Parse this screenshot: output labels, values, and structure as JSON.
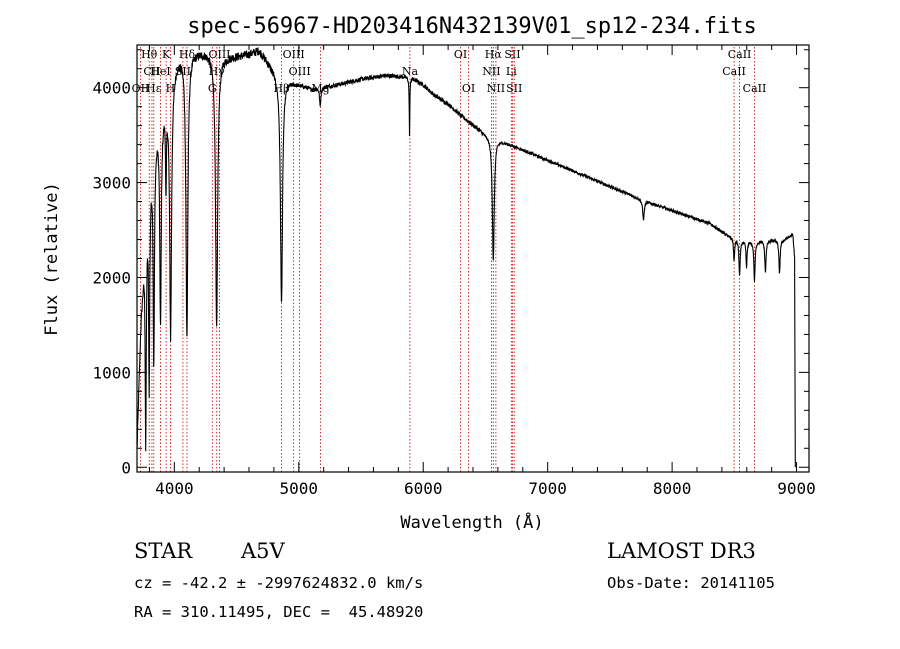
{
  "chart_data": {
    "type": "line",
    "title": "spec-56967-HD203416N432139V01_sp12-234.fits",
    "xlabel": "Wavelength (Å)",
    "ylabel": "Flux (relative)",
    "xlim": [
      3700,
      9100
    ],
    "ylim": [
      -50,
      4450
    ],
    "xticks": [
      4000,
      5000,
      6000,
      7000,
      8000,
      9000
    ],
    "yticks": [
      0,
      1000,
      2000,
      3000,
      4000
    ],
    "grid": false,
    "continuum": [
      [
        3700,
        200
      ],
      [
        3730,
        1500
      ],
      [
        3760,
        2300
      ],
      [
        3790,
        2800
      ],
      [
        3830,
        3400
      ],
      [
        3880,
        3700
      ],
      [
        3930,
        3900
      ],
      [
        3980,
        4150
      ],
      [
        4020,
        4300
      ],
      [
        4080,
        4380
      ],
      [
        4150,
        4380
      ],
      [
        4250,
        4380
      ],
      [
        4400,
        4330
      ],
      [
        4500,
        4340
      ],
      [
        4600,
        4360
      ],
      [
        4680,
        4400
      ],
      [
        4750,
        4280
      ],
      [
        4820,
        4150
      ],
      [
        4950,
        4060
      ],
      [
        5100,
        3990
      ],
      [
        5300,
        4030
      ],
      [
        5500,
        4090
      ],
      [
        5700,
        4130
      ],
      [
        5900,
        4110
      ],
      [
        6000,
        4030
      ],
      [
        6100,
        3910
      ],
      [
        6200,
        3830
      ],
      [
        6300,
        3710
      ],
      [
        6400,
        3610
      ],
      [
        6500,
        3510
      ],
      [
        6700,
        3400
      ],
      [
        6900,
        3290
      ],
      [
        7100,
        3180
      ],
      [
        7300,
        3070
      ],
      [
        7500,
        2960
      ],
      [
        7700,
        2850
      ],
      [
        7900,
        2750
      ],
      [
        8100,
        2660
      ],
      [
        8300,
        2570
      ],
      [
        8450,
        2440
      ],
      [
        8600,
        2380
      ],
      [
        8750,
        2390
      ],
      [
        8900,
        2400
      ],
      [
        8970,
        2450
      ],
      [
        8985,
        2200
      ]
    ],
    "absorption_lines": [
      {
        "wavelength": 3770,
        "depth": 2200,
        "width": 5
      },
      {
        "wavelength": 3798,
        "depth": 2000,
        "width": 5
      },
      {
        "wavelength": 3835,
        "depth": 2300,
        "width": 6
      },
      {
        "wavelength": 3889,
        "depth": 2200,
        "width": 7
      },
      {
        "wavelength": 3933,
        "depth": 900,
        "width": 4
      },
      {
        "wavelength": 3970,
        "depth": 2700,
        "width": 9
      },
      {
        "wavelength": 4101,
        "depth": 3000,
        "width": 9
      },
      {
        "wavelength": 4340,
        "depth": 2900,
        "width": 10
      },
      {
        "wavelength": 4861,
        "depth": 2400,
        "width": 10
      },
      {
        "wavelength": 5172,
        "depth": 200,
        "width": 6
      },
      {
        "wavelength": 5890,
        "depth": 600,
        "width": 3
      },
      {
        "wavelength": 6563,
        "depth": 1300,
        "width": 9
      },
      {
        "wavelength": 7770,
        "depth": 200,
        "width": 8
      },
      {
        "wavelength": 8498,
        "depth": 250,
        "width": 5
      },
      {
        "wavelength": 8542,
        "depth": 380,
        "width": 6
      },
      {
        "wavelength": 8598,
        "depth": 270,
        "width": 5
      },
      {
        "wavelength": 8662,
        "depth": 420,
        "width": 6
      },
      {
        "wavelength": 8750,
        "depth": 330,
        "width": 6
      },
      {
        "wavelength": 8863,
        "depth": 350,
        "width": 6
      }
    ],
    "line_markers": [
      {
        "label": "Hθ",
        "wavelength": 3798,
        "row": 1
      },
      {
        "label": "CII",
        "wavelength": 3820,
        "row": 2
      },
      {
        "label": "OII",
        "wavelength": 3728,
        "row": 3
      },
      {
        "label": "HeI",
        "wavelength": 3889,
        "row": 2
      },
      {
        "label": "Hε",
        "wavelength": 3835,
        "row": 3
      },
      {
        "label": "K",
        "wavelength": 3934,
        "row": 1
      },
      {
        "label": "H",
        "wavelength": 3969,
        "row": 3
      },
      {
        "label": "SII",
        "wavelength": 4069,
        "row": 2
      },
      {
        "label": "Hδ",
        "wavelength": 4102,
        "row": 1
      },
      {
        "label": "OIII",
        "wavelength": 4363,
        "row": 1
      },
      {
        "label": "Hγ",
        "wavelength": 4341,
        "row": 2
      },
      {
        "label": "G",
        "wavelength": 4305,
        "row": 3
      },
      {
        "label": "OIII",
        "wavelength": 4959,
        "row": 1
      },
      {
        "label": "OIII",
        "wavelength": 5007,
        "row": 2
      },
      {
        "label": "Hβ",
        "wavelength": 4861,
        "row": 3
      },
      {
        "label": "Mg",
        "wavelength": 5175,
        "row": 3
      },
      {
        "label": "Na",
        "wavelength": 5893,
        "row": 2
      },
      {
        "label": "OI",
        "wavelength": 6300,
        "row": 1
      },
      {
        "label": "OI",
        "wavelength": 6364,
        "row": 3
      },
      {
        "label": "Hα",
        "wavelength": 6563,
        "row": 1
      },
      {
        "label": "NII",
        "wavelength": 6548,
        "row": 2
      },
      {
        "label": "NII",
        "wavelength": 6584,
        "row": 3
      },
      {
        "label": "SII",
        "wavelength": 6717,
        "row": 1
      },
      {
        "label": "Li",
        "wavelength": 6708,
        "row": 2
      },
      {
        "label": "SII",
        "wavelength": 6731,
        "row": 3
      },
      {
        "label": "CaII",
        "wavelength": 8542,
        "row": 1
      },
      {
        "label": "CaII",
        "wavelength": 8498,
        "row": 2
      },
      {
        "label": "CaII",
        "wavelength": 8662,
        "row": 3
      }
    ]
  },
  "info": {
    "object_class": "STAR",
    "subclass": "A5V",
    "survey": "LAMOST DR3",
    "redshift_line": "cz = -42.2 ± -2997624832.0 km/s",
    "obs_date_line": "Obs-Date: 20141105",
    "coords_line": "RA = 310.11495, DEC =  45.48920"
  }
}
